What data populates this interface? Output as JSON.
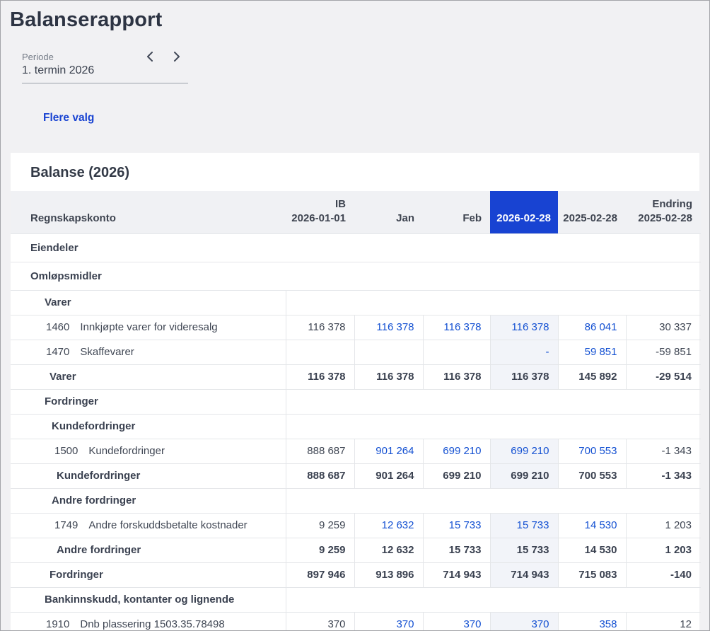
{
  "page": {
    "title": "Balanserapport",
    "period": {
      "label": "Periode",
      "value": "1. termin 2026"
    },
    "more_options_label": "Flere valg"
  },
  "icons": {
    "previous_period": "chevron-left",
    "next_period": "chevron-right"
  },
  "colors": {
    "accent_blue": "#1843d2",
    "link_blue": "#1350d2",
    "highlight_column_bg": "#f2f4f9",
    "header_row_bg": "#f0f1f4",
    "text_dark": "#3a4150"
  },
  "report": {
    "title": "Balanse (2026)",
    "columns": {
      "account": "Regnskapskonto",
      "ib_line1": "IB",
      "ib_line2": "2026-01-01",
      "jan": "Jan",
      "feb": "Feb",
      "current": "2026-02-28",
      "previous": "2025-02-28",
      "change_line1": "Endring",
      "change_line2": "2025-02-28"
    },
    "rows": [
      {
        "type": "section",
        "level": 0,
        "label": "Eiendeler"
      },
      {
        "type": "section",
        "level": 0,
        "label": "Omløpsmidler"
      },
      {
        "type": "group",
        "level": 1,
        "label": "Varer"
      },
      {
        "type": "account",
        "level": 1,
        "number": "1460",
        "name": "Innkjøpte varer for videresalg",
        "values": [
          "116 378",
          "116 378",
          "116 378",
          "116 378",
          "86 041",
          "30 337"
        ]
      },
      {
        "type": "account",
        "level": 1,
        "number": "1470",
        "name": "Skaffevarer",
        "values": [
          "",
          "",
          "",
          "-",
          "59 851",
          "-59 851"
        ]
      },
      {
        "type": "sum",
        "level": 1,
        "label": "Varer",
        "values": [
          "116 378",
          "116 378",
          "116 378",
          "116 378",
          "145 892",
          "-29 514"
        ]
      },
      {
        "type": "group",
        "level": 1,
        "label": "Fordringer"
      },
      {
        "type": "group",
        "level": 2,
        "label": "Kundefordringer"
      },
      {
        "type": "account",
        "level": 2,
        "number": "1500",
        "name": "Kundefordringer",
        "values": [
          "888 687",
          "901 264",
          "699 210",
          "699 210",
          "700 553",
          "-1 343"
        ]
      },
      {
        "type": "sum",
        "level": 2,
        "label": "Kundefordringer",
        "values": [
          "888 687",
          "901 264",
          "699 210",
          "699 210",
          "700 553",
          "-1 343"
        ]
      },
      {
        "type": "group",
        "level": 2,
        "label": "Andre fordringer"
      },
      {
        "type": "account",
        "level": 2,
        "number": "1749",
        "name": "Andre forskuddsbetalte kostnader",
        "values": [
          "9 259",
          "12 632",
          "15 733",
          "15 733",
          "14 530",
          "1 203"
        ]
      },
      {
        "type": "sum",
        "level": 2,
        "label": "Andre fordringer",
        "values": [
          "9 259",
          "12 632",
          "15 733",
          "15 733",
          "14 530",
          "1 203"
        ]
      },
      {
        "type": "sum",
        "level": 1,
        "label": "Fordringer",
        "values": [
          "897 946",
          "913 896",
          "714 943",
          "714 943",
          "715 083",
          "-140"
        ]
      },
      {
        "type": "group",
        "level": 1,
        "label": "Bankinnskudd, kontanter og lignende"
      },
      {
        "type": "account",
        "level": 1,
        "number": "1910",
        "name": "Dnb plassering 1503.35.78498",
        "values": [
          "370",
          "370",
          "370",
          "370",
          "358",
          "12"
        ]
      }
    ]
  }
}
